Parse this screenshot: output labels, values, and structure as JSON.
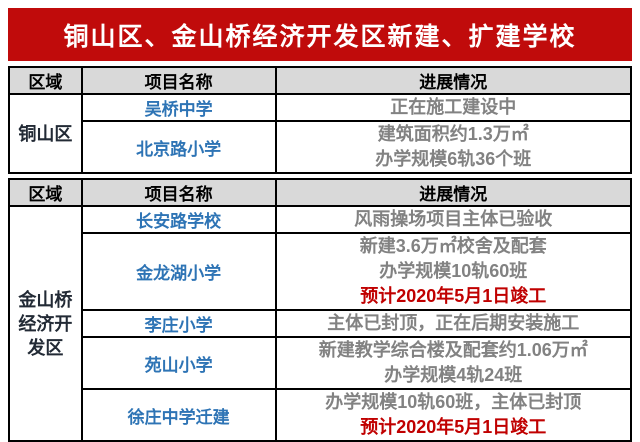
{
  "title": "铜山区、金山桥经济开发区新建、扩建学校",
  "colors": {
    "banner_red": "#c00b0b",
    "header_bg": "#d9d9d9",
    "school_name_blue": "#2e74b5",
    "progress_gray": "#828282",
    "highlight_red": "#c00000",
    "region_dark": "#222a35",
    "border_black": "#000000"
  },
  "table": {
    "headers": {
      "region": "区域",
      "project": "项目名称",
      "progress": "进展情况"
    },
    "sections": [
      {
        "region": "铜山区",
        "rows": [
          {
            "project": "吴桥中学",
            "lines": [
              {
                "text": "正在施工建设中",
                "highlight": false
              }
            ]
          },
          {
            "project": "北京路小学",
            "lines": [
              {
                "text": "建筑面积约1.3万㎡",
                "highlight": false
              },
              {
                "text": "办学规模6轨36个班",
                "highlight": false
              }
            ]
          }
        ]
      },
      {
        "region": "金山桥经济开发区",
        "rows": [
          {
            "project": "长安路学校",
            "lines": [
              {
                "text": "风雨操场项目主体已验收",
                "highlight": false
              }
            ]
          },
          {
            "project": "金龙湖小学",
            "lines": [
              {
                "text": "新建3.6万㎡校舍及配套",
                "highlight": false
              },
              {
                "text": "办学规模10轨60班",
                "highlight": false
              },
              {
                "text": "预计2020年5月1日竣工",
                "highlight": true
              }
            ]
          },
          {
            "project": "李庄小学",
            "lines": [
              {
                "text": "主体已封顶，正在后期安装施工",
                "highlight": false
              }
            ]
          },
          {
            "project": "苑山小学",
            "lines": [
              {
                "text": "新建教学综合楼及配套约1.06万㎡",
                "highlight": false
              },
              {
                "text": "办学规模4轨24班",
                "highlight": false
              }
            ]
          },
          {
            "project": "徐庄中学迁建",
            "lines": [
              {
                "text": "办学规模10轨60班，主体已封顶",
                "highlight": false
              },
              {
                "text": "预计2020年5月1日竣工",
                "highlight": true
              }
            ]
          }
        ]
      }
    ]
  }
}
